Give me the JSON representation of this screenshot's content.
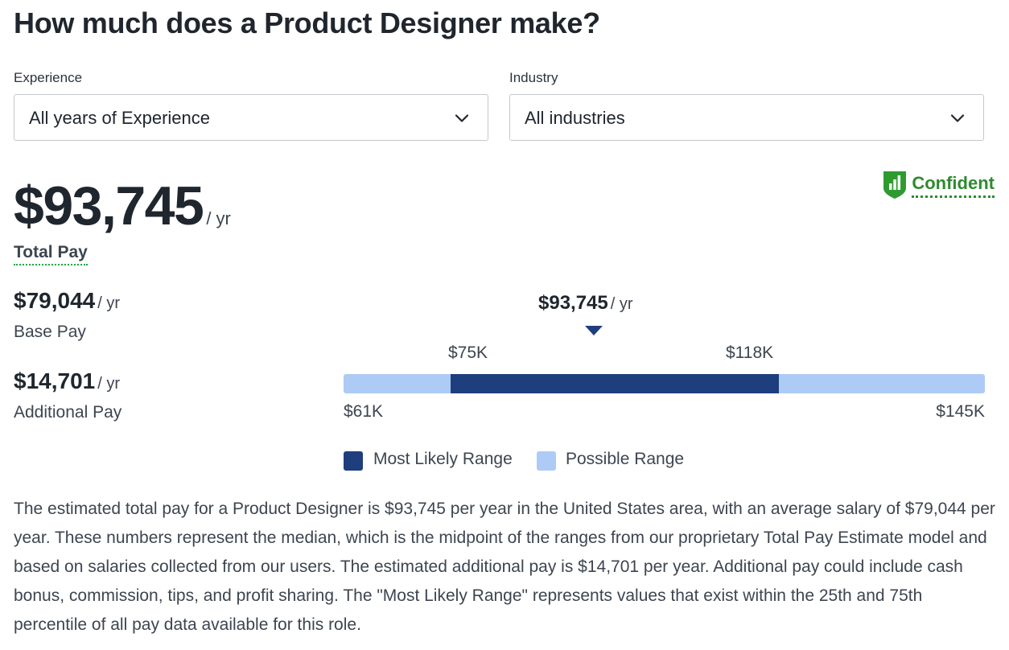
{
  "title": "How much does a Product Designer make?",
  "filters": {
    "experience": {
      "label": "Experience",
      "value": "All years of Experience"
    },
    "industry": {
      "label": "Industry",
      "value": "All industries"
    }
  },
  "icons": {
    "chevron": "chevron-down-icon",
    "confidence": "shield-bar-chart-icon"
  },
  "total_pay": {
    "value": "$93,745",
    "unit": "/ yr",
    "label": "Total Pay"
  },
  "confidence": {
    "label": "Confident",
    "color": "#2f8a2f"
  },
  "base_pay": {
    "value": "$79,044",
    "unit": "/ yr",
    "label": "Base Pay"
  },
  "additional_pay": {
    "value": "$14,701",
    "unit": "/ yr",
    "label": "Additional Pay"
  },
  "range": {
    "median": {
      "value": "$93,745",
      "unit": "/ yr",
      "amount": 93745
    },
    "possible_low": {
      "label": "$61K",
      "amount": 61000
    },
    "possible_high": {
      "label": "$145K",
      "amount": 145000
    },
    "likely_low": {
      "label": "$75K",
      "amount": 75000
    },
    "likely_high": {
      "label": "$118K",
      "amount": 118000
    },
    "colors": {
      "likely": "#1f3e7d",
      "possible": "#aecbf5"
    }
  },
  "legend": {
    "likely": "Most Likely Range",
    "possible": "Possible Range"
  },
  "description": "The estimated total pay for a Product Designer is $93,745 per year in the United States area, with an average salary of $79,044 per year. These numbers represent the median, which is the midpoint of the ranges from our proprietary Total Pay Estimate model and based on salaries collected from our users. The estimated additional pay is $14,701 per year. Additional pay could include cash bonus, commission, tips, and profit sharing. The \"Most Likely Range\" represents values that exist within the 25th and 75th percentile of all pay data available for this role."
}
